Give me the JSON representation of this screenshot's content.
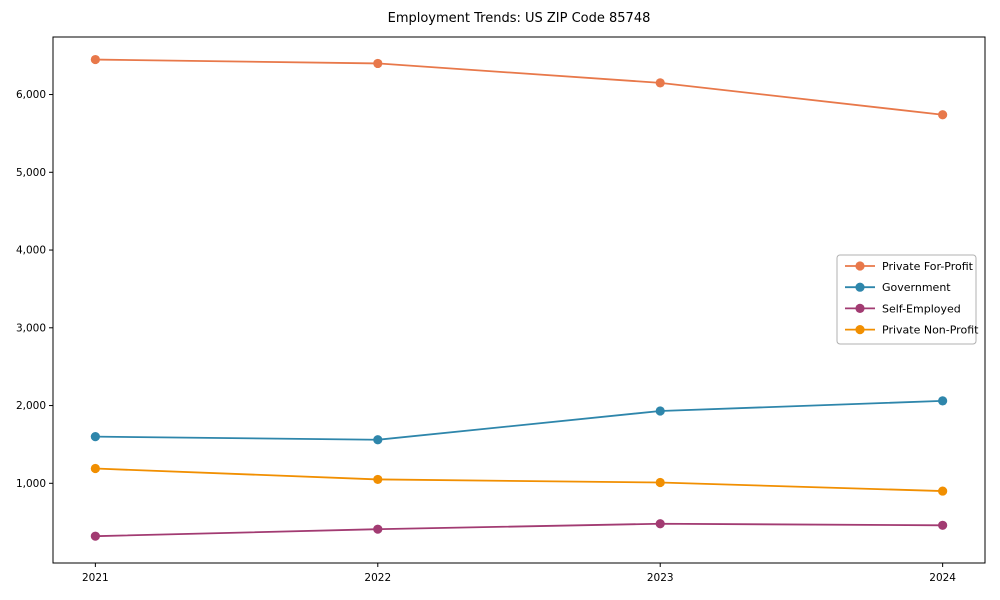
{
  "title": "Employment Trends: US ZIP Code 85748",
  "chart_data": {
    "type": "line",
    "title": "Employment Trends: US ZIP Code 85748",
    "xlabel": "",
    "ylabel": "",
    "x": [
      2021,
      2022,
      2023,
      2024
    ],
    "x_tick_labels": [
      "2021",
      "2022",
      "2023",
      "2024"
    ],
    "y_ticks": [
      1000,
      2000,
      3000,
      4000,
      5000,
      6000
    ],
    "y_tick_labels": [
      "1,000",
      "2,000",
      "3,000",
      "4,000",
      "5,000",
      "6,000"
    ],
    "xlim": [
      2020.85,
      2024.15
    ],
    "ylim": [
      -25,
      6740
    ],
    "grid": false,
    "legend_position": "center right",
    "legend_border_color": "#b0b0b0",
    "axis_color": "#000000",
    "series": [
      {
        "name": "Private For-Profit",
        "color": "#e8784a",
        "values": [
          6450,
          6400,
          6150,
          5740
        ]
      },
      {
        "name": "Government",
        "color": "#2e86ab",
        "values": [
          1600,
          1560,
          1930,
          2060
        ]
      },
      {
        "name": "Self-Employed",
        "color": "#a23b72",
        "values": [
          320,
          410,
          480,
          460
        ]
      },
      {
        "name": "Private Non-Profit",
        "color": "#f18f01",
        "values": [
          1190,
          1050,
          1010,
          900
        ]
      }
    ]
  }
}
